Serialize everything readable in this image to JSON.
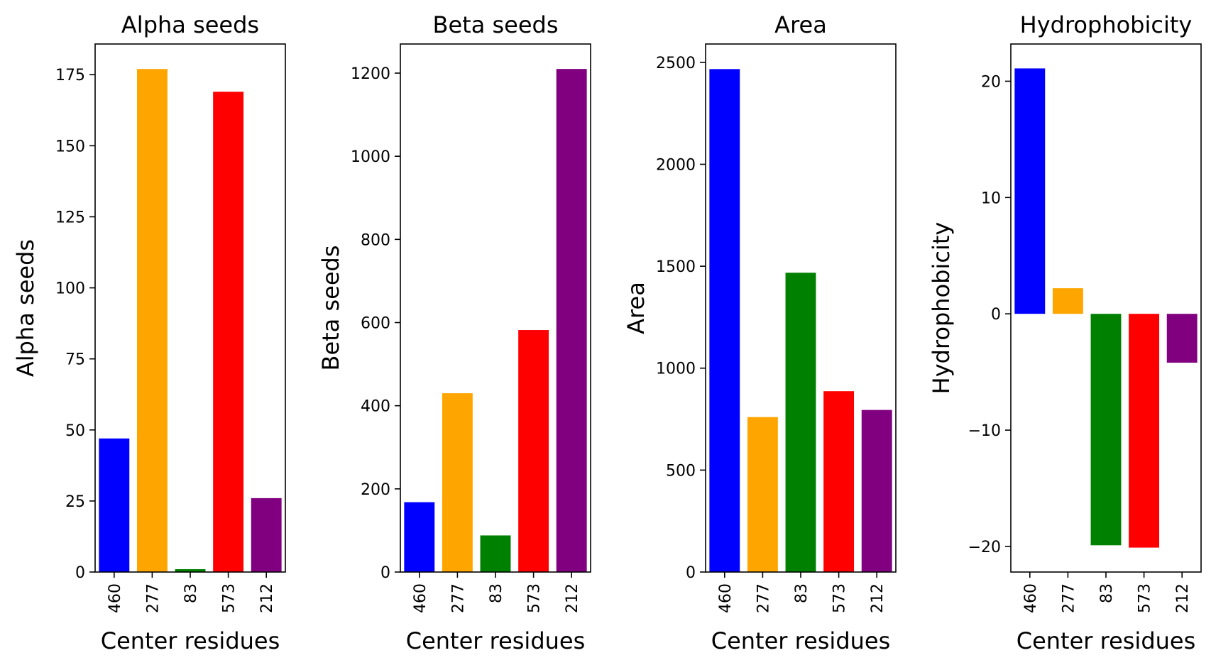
{
  "chart_data": [
    {
      "type": "bar",
      "title": "Alpha seeds",
      "xlabel": "Center residues",
      "ylabel": "Alpha seeds",
      "categories": [
        "460",
        "277",
        "83",
        "573",
        "212"
      ],
      "values": [
        47,
        177,
        1,
        169,
        26
      ],
      "colors": [
        "#0000ff",
        "#ffa500",
        "#008000",
        "#ff0000",
        "#800080"
      ],
      "ylim": [
        0,
        185.8
      ],
      "yticks": [
        0,
        25,
        50,
        75,
        100,
        125,
        150,
        175
      ]
    },
    {
      "type": "bar",
      "title": "Beta seeds",
      "xlabel": "Center residues",
      "ylabel": "Beta seeds",
      "categories": [
        "460",
        "277",
        "83",
        "573",
        "212"
      ],
      "values": [
        168,
        430,
        88,
        582,
        1210
      ],
      "colors": [
        "#0000ff",
        "#ffa500",
        "#008000",
        "#ff0000",
        "#800080"
      ],
      "ylim": [
        0,
        1270
      ],
      "yticks": [
        0,
        200,
        400,
        600,
        800,
        1000,
        1200
      ]
    },
    {
      "type": "bar",
      "title": "Area",
      "xlabel": "Center residues",
      "ylabel": "Area",
      "categories": [
        "460",
        "277",
        "83",
        "573",
        "212"
      ],
      "values": [
        2467,
        760,
        1468,
        887,
        795
      ],
      "colors": [
        "#0000ff",
        "#ffa500",
        "#008000",
        "#ff0000",
        "#800080"
      ],
      "ylim": [
        0,
        2590
      ],
      "yticks": [
        0,
        500,
        1000,
        1500,
        2000,
        2500
      ]
    },
    {
      "type": "bar",
      "title": "Hydrophobicity",
      "xlabel": "Center residues",
      "ylabel": "Hydrophobicity",
      "categories": [
        "460",
        "277",
        "83",
        "573",
        "212"
      ],
      "values": [
        21.1,
        2.2,
        -19.9,
        -20.1,
        -4.2
      ],
      "colors": [
        "#0000ff",
        "#ffa500",
        "#008000",
        "#ff0000",
        "#800080"
      ],
      "ylim": [
        -22.2,
        23.2
      ],
      "yticks": [
        -20,
        -10,
        0,
        10,
        20
      ]
    }
  ]
}
